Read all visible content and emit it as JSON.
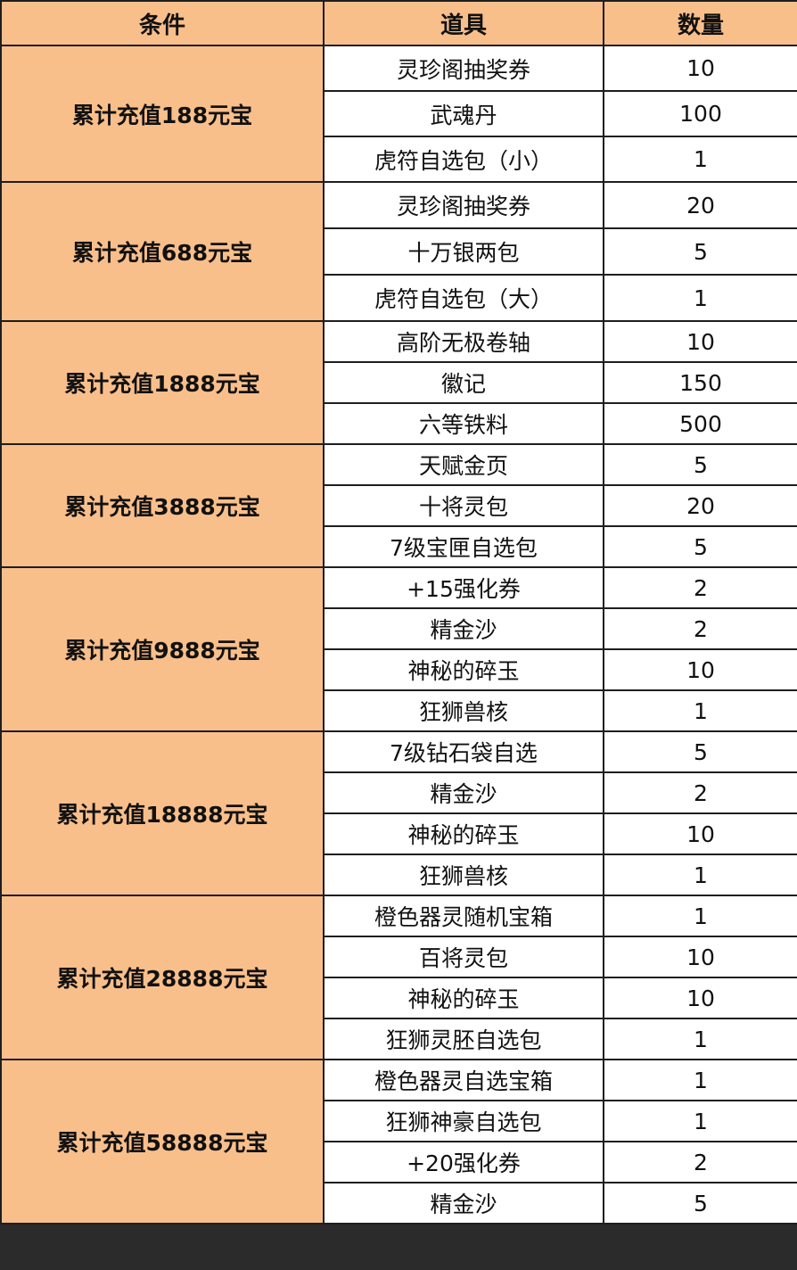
{
  "colors": {
    "header_bg": "#f9bf8b",
    "condition_bg": "#f9bf8b",
    "cell_bg": "#ffffff",
    "border": "#1e1e1e"
  },
  "table": {
    "headers": [
      "条件",
      "道具",
      "数量"
    ],
    "groups": [
      {
        "condition": "累计充值188元宝",
        "items": [
          {
            "name": "灵珍阁抽奖券",
            "qty": "10"
          },
          {
            "name": "武魂丹",
            "qty": "100"
          },
          {
            "name": "虎符自选包（小）",
            "qty": "1"
          }
        ]
      },
      {
        "condition": "累计充值688元宝",
        "items": [
          {
            "name": "灵珍阁抽奖券",
            "qty": "20"
          },
          {
            "name": "十万银两包",
            "qty": "5"
          },
          {
            "name": "虎符自选包（大）",
            "qty": "1"
          }
        ]
      },
      {
        "condition": "累计充值1888元宝",
        "items": [
          {
            "name": "高阶无极卷轴",
            "qty": "10"
          },
          {
            "name": "徽记",
            "qty": "150"
          },
          {
            "name": "六等铁料",
            "qty": "500"
          }
        ]
      },
      {
        "condition": "累计充值3888元宝",
        "items": [
          {
            "name": "天赋金页",
            "qty": "5"
          },
          {
            "name": "十将灵包",
            "qty": "20"
          },
          {
            "name": "7级宝匣自选包",
            "qty": "5"
          }
        ]
      },
      {
        "condition": "累计充值9888元宝",
        "items": [
          {
            "name": "+15强化券",
            "qty": "2"
          },
          {
            "name": "精金沙",
            "qty": "2"
          },
          {
            "name": "神秘的碎玉",
            "qty": "10"
          },
          {
            "name": "狂狮兽核",
            "qty": "1"
          }
        ]
      },
      {
        "condition": "累计充值18888元宝",
        "items": [
          {
            "name": "7级钻石袋自选",
            "qty": "5"
          },
          {
            "name": "精金沙",
            "qty": "2"
          },
          {
            "name": "神秘的碎玉",
            "qty": "10"
          },
          {
            "name": "狂狮兽核",
            "qty": "1"
          }
        ]
      },
      {
        "condition": "累计充值28888元宝",
        "items": [
          {
            "name": "橙色器灵随机宝箱",
            "qty": "1"
          },
          {
            "name": "百将灵包",
            "qty": "10"
          },
          {
            "name": "神秘的碎玉",
            "qty": "10"
          },
          {
            "name": "狂狮灵胚自选包",
            "qty": "1"
          }
        ]
      },
      {
        "condition": "累计充值58888元宝",
        "items": [
          {
            "name": "橙色器灵自选宝箱",
            "qty": "1"
          },
          {
            "name": "狂狮神豪自选包",
            "qty": "1"
          },
          {
            "name": "+20强化券",
            "qty": "2"
          },
          {
            "name": "精金沙",
            "qty": "5"
          }
        ]
      }
    ]
  }
}
